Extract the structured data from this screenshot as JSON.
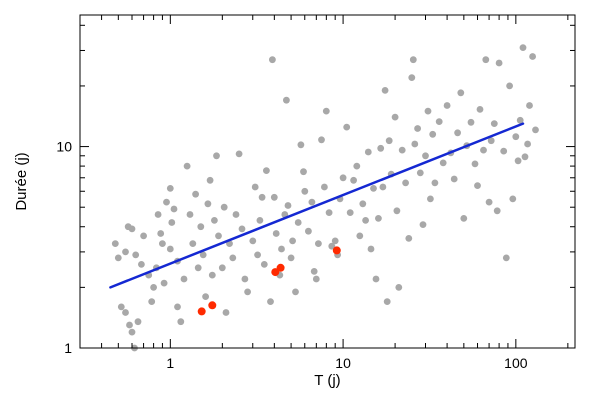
{
  "chart_data": {
    "type": "scatter",
    "xlabel": "T (j)",
    "ylabel": "Durée (j)",
    "x_scale": "log",
    "y_scale": "log",
    "xlim": [
      0.3,
      220
    ],
    "ylim": [
      1,
      45
    ],
    "grid": false,
    "x_ticks": [
      {
        "value": 1,
        "label": "1"
      },
      {
        "value": 10,
        "label": "10"
      },
      {
        "value": 100,
        "label": "100"
      }
    ],
    "y_ticks": [
      {
        "value": 1,
        "label": "1"
      },
      {
        "value": 10,
        "label": "10"
      }
    ],
    "colors": {
      "grey_points": "#a8a8a8",
      "highlight_points": "#ff2a00",
      "fit_line": "#1428d2"
    },
    "fit_line": {
      "x": [
        0.45,
        110
      ],
      "y": [
        2.0,
        13.0
      ]
    },
    "series": [
      {
        "role": "grey",
        "points": [
          [
            0.48,
            3.3
          ],
          [
            0.5,
            2.8
          ],
          [
            0.52,
            1.6
          ],
          [
            0.55,
            3.0
          ],
          [
            0.55,
            1.5
          ],
          [
            0.58,
            1.3
          ],
          [
            0.6,
            1.2
          ],
          [
            0.62,
            1.0
          ],
          [
            0.65,
            1.35
          ],
          [
            0.57,
            4.0
          ],
          [
            0.6,
            3.9
          ],
          [
            0.63,
            2.9
          ],
          [
            0.68,
            2.6
          ],
          [
            0.7,
            3.6
          ],
          [
            0.75,
            2.3
          ],
          [
            0.78,
            1.7
          ],
          [
            0.8,
            2.0
          ],
          [
            0.83,
            2.5
          ],
          [
            0.85,
            4.6
          ],
          [
            0.88,
            3.7
          ],
          [
            0.9,
            3.3
          ],
          [
            0.92,
            2.1
          ],
          [
            0.95,
            5.3
          ],
          [
            1.0,
            6.2
          ],
          [
            1.0,
            3.1
          ],
          [
            1.02,
            4.2
          ],
          [
            1.05,
            4.9
          ],
          [
            1.1,
            2.7
          ],
          [
            1.1,
            1.6
          ],
          [
            1.15,
            1.35
          ],
          [
            1.2,
            2.2
          ],
          [
            1.25,
            8.0
          ],
          [
            1.3,
            4.6
          ],
          [
            1.35,
            3.3
          ],
          [
            1.4,
            5.8
          ],
          [
            1.45,
            2.5
          ],
          [
            1.5,
            4.0
          ],
          [
            1.55,
            2.9
          ],
          [
            1.6,
            1.8
          ],
          [
            1.65,
            5.2
          ],
          [
            1.7,
            6.8
          ],
          [
            1.75,
            2.3
          ],
          [
            1.8,
            4.3
          ],
          [
            1.85,
            9.0
          ],
          [
            1.9,
            3.6
          ],
          [
            2.0,
            2.5
          ],
          [
            2.05,
            5.0
          ],
          [
            2.1,
            1.5
          ],
          [
            2.2,
            3.3
          ],
          [
            2.3,
            2.8
          ],
          [
            2.4,
            4.6
          ],
          [
            2.5,
            9.2
          ],
          [
            2.6,
            3.9
          ],
          [
            2.7,
            2.2
          ],
          [
            2.8,
            1.9
          ],
          [
            3.0,
            3.4
          ],
          [
            3.1,
            6.3
          ],
          [
            3.2,
            2.9
          ],
          [
            3.3,
            4.3
          ],
          [
            3.4,
            5.6
          ],
          [
            3.5,
            2.6
          ],
          [
            3.6,
            7.6
          ],
          [
            3.8,
            1.7
          ],
          [
            3.9,
            27.0
          ],
          [
            4.0,
            5.6
          ],
          [
            4.1,
            3.7
          ],
          [
            4.3,
            2.3
          ],
          [
            4.4,
            3.1
          ],
          [
            4.6,
            4.6
          ],
          [
            4.7,
            17.0
          ],
          [
            4.8,
            5.1
          ],
          [
            5.0,
            2.8
          ],
          [
            5.1,
            3.4
          ],
          [
            5.3,
            1.9
          ],
          [
            5.5,
            4.2
          ],
          [
            5.7,
            10.2
          ],
          [
            5.9,
            7.5
          ],
          [
            6.0,
            6.0
          ],
          [
            6.3,
            3.8
          ],
          [
            6.6,
            5.3
          ],
          [
            6.8,
            2.4
          ],
          [
            7.0,
            2.2
          ],
          [
            7.2,
            3.3
          ],
          [
            7.5,
            10.8
          ],
          [
            7.8,
            6.3
          ],
          [
            8.0,
            15.0
          ],
          [
            8.3,
            4.7
          ],
          [
            8.6,
            3.2
          ],
          [
            9.0,
            3.4
          ],
          [
            9.3,
            2.9
          ],
          [
            9.6,
            5.5
          ],
          [
            10.0,
            7.0
          ],
          [
            10.5,
            12.5
          ],
          [
            11.0,
            4.7
          ],
          [
            11.5,
            6.8
          ],
          [
            12.0,
            8.0
          ],
          [
            12.5,
            3.6
          ],
          [
            13.0,
            5.2
          ],
          [
            13.5,
            4.3
          ],
          [
            14.0,
            9.4
          ],
          [
            14.5,
            3.1
          ],
          [
            15.0,
            6.2
          ],
          [
            15.5,
            2.2
          ],
          [
            16.0,
            4.4
          ],
          [
            16.5,
            9.8
          ],
          [
            17.0,
            6.3
          ],
          [
            17.5,
            19.0
          ],
          [
            18.0,
            1.7
          ],
          [
            18.5,
            10.7
          ],
          [
            19.0,
            7.3
          ],
          [
            20.0,
            14.0
          ],
          [
            20.5,
            4.8
          ],
          [
            21.0,
            2.0
          ],
          [
            22.0,
            9.6
          ],
          [
            23.0,
            6.6
          ],
          [
            24.0,
            3.5
          ],
          [
            25.0,
            22.0
          ],
          [
            25.5,
            27.0
          ],
          [
            26.0,
            10.3
          ],
          [
            27.0,
            12.3
          ],
          [
            28.0,
            7.4
          ],
          [
            29.0,
            4.1
          ],
          [
            30.0,
            9.0
          ],
          [
            31.0,
            15.0
          ],
          [
            32.0,
            5.5
          ],
          [
            33.0,
            11.5
          ],
          [
            34.0,
            6.6
          ],
          [
            36.0,
            13.3
          ],
          [
            38.0,
            8.3
          ],
          [
            40.0,
            16.0
          ],
          [
            42.0,
            9.3
          ],
          [
            44.0,
            6.9
          ],
          [
            46.0,
            11.7
          ],
          [
            48.0,
            18.5
          ],
          [
            50.0,
            4.4
          ],
          [
            52.0,
            10.1
          ],
          [
            55.0,
            13.2
          ],
          [
            58.0,
            8.2
          ],
          [
            60.0,
            6.4
          ],
          [
            62.0,
            15.3
          ],
          [
            65.0,
            9.6
          ],
          [
            67.0,
            27.0
          ],
          [
            70.0,
            5.3
          ],
          [
            72.0,
            10.7
          ],
          [
            75.0,
            13.0
          ],
          [
            78.0,
            4.8
          ],
          [
            80.0,
            26.0
          ],
          [
            85.0,
            9.5
          ],
          [
            88.0,
            2.8
          ],
          [
            92.0,
            20.0
          ],
          [
            96.0,
            5.5
          ],
          [
            100.0,
            11.2
          ],
          [
            103.0,
            8.5
          ],
          [
            106.0,
            13.5
          ],
          [
            110.0,
            31.0
          ],
          [
            113.0,
            8.9
          ],
          [
            117.0,
            10.3
          ],
          [
            120.0,
            16.0
          ],
          [
            125.0,
            28.0
          ],
          [
            130.0,
            12.1
          ]
        ]
      },
      {
        "role": "highlight",
        "points": [
          [
            1.52,
            1.52
          ],
          [
            1.75,
            1.63
          ],
          [
            4.05,
            2.38
          ],
          [
            4.35,
            2.5
          ],
          [
            9.2,
            3.05
          ]
        ]
      }
    ]
  }
}
